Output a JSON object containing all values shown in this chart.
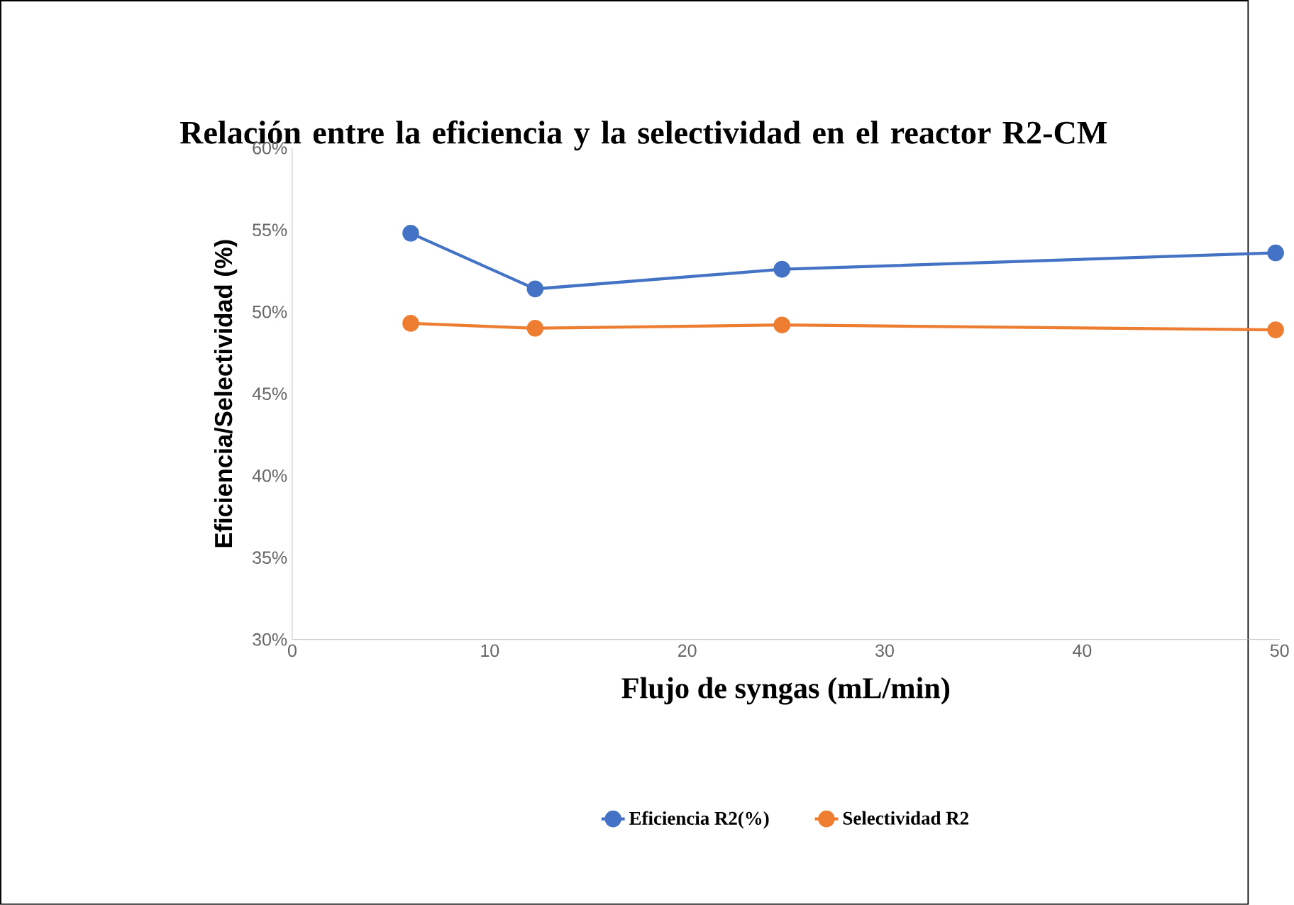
{
  "chart_data": {
    "type": "line",
    "title": "Relación entre la eficiencia y la selectividad en el reactor R2-CM",
    "xlabel": "Flujo de syngas (mL/min)",
    "ylabel": "Eficiencia/Selectividad (%)",
    "series": [
      {
        "name": "Eficiencia R2(%)",
        "color": "#4472c4",
        "x": [
          6,
          12.3,
          24.8,
          49.8
        ],
        "values": [
          54.8,
          51.4,
          52.6,
          53.6
        ]
      },
      {
        "name": "Selectividad R2",
        "color": "#ed7d31",
        "x": [
          6,
          12.3,
          24.8,
          49.8
        ],
        "values": [
          49.3,
          49.0,
          49.2,
          48.9
        ]
      }
    ],
    "xlim": [
      0,
      50
    ],
    "xticks": [
      0,
      10,
      20,
      30,
      40,
      50
    ],
    "ylim": [
      30,
      60
    ],
    "yticks": [
      {
        "value": 30,
        "label": "30%"
      },
      {
        "value": 35,
        "label": "35%"
      },
      {
        "value": 40,
        "label": "40%"
      },
      {
        "value": 45,
        "label": "45%"
      },
      {
        "value": 50,
        "label": "50%"
      },
      {
        "value": 55,
        "label": "55%"
      },
      {
        "value": 60,
        "label": "60%"
      }
    ],
    "legend": "bottom",
    "marker": "circle",
    "line_style": "solid"
  }
}
